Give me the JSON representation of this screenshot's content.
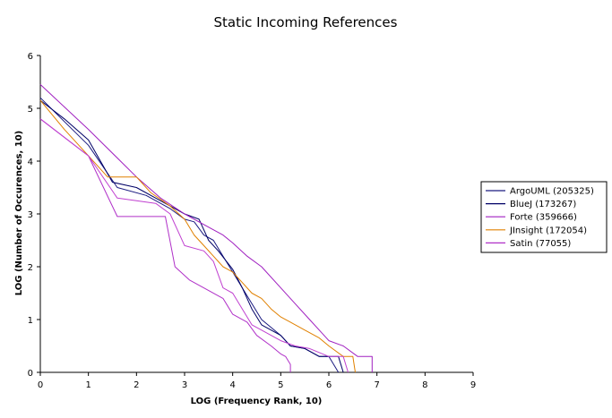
{
  "chart_data": {
    "type": "line",
    "title": "Static Incoming References",
    "xlabel": "LOG (Frequency Rank, 10)",
    "ylabel": "LOG (Number of Occurences, 10)",
    "xlim": [
      0,
      9
    ],
    "ylim": [
      0,
      6
    ],
    "x_ticks": [
      "0",
      "1",
      "2",
      "3",
      "4",
      "5",
      "6",
      "7",
      "8",
      "9"
    ],
    "y_ticks": [
      "0",
      "1",
      "2",
      "3",
      "4",
      "5",
      "6"
    ],
    "grid": false,
    "legend_position": "right",
    "series": [
      {
        "name": "ArgoUML (205325)",
        "color": "#1a1a80",
        "points": [
          [
            0,
            5.2
          ],
          [
            0.5,
            4.75
          ],
          [
            1,
            4.3
          ],
          [
            1.6,
            3.5
          ],
          [
            2.2,
            3.35
          ],
          [
            2.7,
            3.1
          ],
          [
            3.0,
            2.9
          ],
          [
            3.2,
            2.85
          ],
          [
            3.4,
            2.6
          ],
          [
            3.6,
            2.5
          ],
          [
            3.8,
            2.2
          ],
          [
            4.0,
            1.9
          ],
          [
            4.2,
            1.6
          ],
          [
            4.4,
            1.3
          ],
          [
            4.6,
            1.0
          ],
          [
            4.8,
            0.85
          ],
          [
            5.0,
            0.7
          ],
          [
            5.2,
            0.5
          ],
          [
            5.5,
            0.45
          ],
          [
            5.8,
            0.3
          ],
          [
            6.0,
            0.3
          ],
          [
            6.2,
            0.0
          ]
        ]
      },
      {
        "name": "BlueJ (173267)",
        "color": "#000066",
        "points": [
          [
            0,
            5.15
          ],
          [
            0.5,
            4.8
          ],
          [
            1,
            4.4
          ],
          [
            1.5,
            3.6
          ],
          [
            2.0,
            3.5
          ],
          [
            2.5,
            3.25
          ],
          [
            2.8,
            3.1
          ],
          [
            3.0,
            3.0
          ],
          [
            3.3,
            2.9
          ],
          [
            3.5,
            2.5
          ],
          [
            3.7,
            2.3
          ],
          [
            4.0,
            1.95
          ],
          [
            4.2,
            1.6
          ],
          [
            4.4,
            1.2
          ],
          [
            4.6,
            0.9
          ],
          [
            4.8,
            0.8
          ],
          [
            5.0,
            0.7
          ],
          [
            5.2,
            0.5
          ],
          [
            5.5,
            0.45
          ],
          [
            5.8,
            0.3
          ],
          [
            6.2,
            0.3
          ],
          [
            6.3,
            0.0
          ]
        ]
      },
      {
        "name": "Forte (359666)",
        "color": "#a020c0",
        "points": [
          [
            0,
            5.45
          ],
          [
            1,
            4.6
          ],
          [
            2,
            3.7
          ],
          [
            2.5,
            3.3
          ],
          [
            3.0,
            3.0
          ],
          [
            3.5,
            2.75
          ],
          [
            3.8,
            2.6
          ],
          [
            4.0,
            2.45
          ],
          [
            4.3,
            2.2
          ],
          [
            4.6,
            2.0
          ],
          [
            5.0,
            1.6
          ],
          [
            5.3,
            1.3
          ],
          [
            5.6,
            1.0
          ],
          [
            5.8,
            0.8
          ],
          [
            6.0,
            0.6
          ],
          [
            6.3,
            0.5
          ],
          [
            6.6,
            0.3
          ],
          [
            6.9,
            0.3
          ],
          [
            6.9,
            0.0
          ]
        ]
      },
      {
        "name": "JInsight (172054)",
        "color": "#e08000",
        "points": [
          [
            0,
            5.15
          ],
          [
            0.5,
            4.6
          ],
          [
            1,
            4.1
          ],
          [
            1.4,
            3.7
          ],
          [
            2.0,
            3.7
          ],
          [
            2.3,
            3.4
          ],
          [
            2.7,
            3.15
          ],
          [
            3.0,
            2.9
          ],
          [
            3.2,
            2.6
          ],
          [
            3.4,
            2.4
          ],
          [
            3.6,
            2.2
          ],
          [
            3.8,
            2.0
          ],
          [
            4.0,
            1.9
          ],
          [
            4.2,
            1.7
          ],
          [
            4.4,
            1.5
          ],
          [
            4.6,
            1.4
          ],
          [
            4.8,
            1.2
          ],
          [
            5.0,
            1.05
          ],
          [
            5.2,
            0.95
          ],
          [
            5.5,
            0.8
          ],
          [
            5.8,
            0.65
          ],
          [
            6.0,
            0.5
          ],
          [
            6.3,
            0.3
          ],
          [
            6.5,
            0.3
          ],
          [
            6.55,
            0.0
          ]
        ]
      },
      {
        "name": "Satin (77055)",
        "color": "#b030c8",
        "points": [
          [
            0,
            4.8
          ],
          [
            1,
            4.1
          ],
          [
            1.6,
            2.95
          ],
          [
            2.6,
            2.95
          ],
          [
            2.8,
            2.0
          ],
          [
            3.1,
            1.75
          ],
          [
            3.5,
            1.55
          ],
          [
            3.8,
            1.4
          ],
          [
            4.0,
            1.1
          ],
          [
            4.3,
            0.95
          ],
          [
            4.5,
            0.7
          ],
          [
            4.8,
            0.5
          ],
          [
            5.0,
            0.35
          ],
          [
            5.1,
            0.3
          ],
          [
            5.2,
            0.15
          ],
          [
            5.2,
            0.0
          ]
        ]
      },
      {
        "name": "",
        "color": "#c040d0",
        "points": [
          [
            0,
            4.8
          ],
          [
            1,
            4.1
          ],
          [
            1.6,
            3.3
          ],
          [
            2.0,
            3.25
          ],
          [
            2.4,
            3.2
          ],
          [
            2.7,
            3.0
          ],
          [
            3.0,
            2.4
          ],
          [
            3.4,
            2.3
          ],
          [
            3.6,
            2.1
          ],
          [
            3.8,
            1.6
          ],
          [
            4.0,
            1.5
          ],
          [
            4.2,
            1.2
          ],
          [
            4.4,
            0.9
          ],
          [
            4.6,
            0.8
          ],
          [
            4.8,
            0.7
          ],
          [
            5.0,
            0.6
          ],
          [
            5.3,
            0.5
          ],
          [
            5.6,
            0.45
          ],
          [
            6.0,
            0.3
          ],
          [
            6.3,
            0.3
          ],
          [
            6.4,
            0.0
          ]
        ]
      }
    ]
  }
}
